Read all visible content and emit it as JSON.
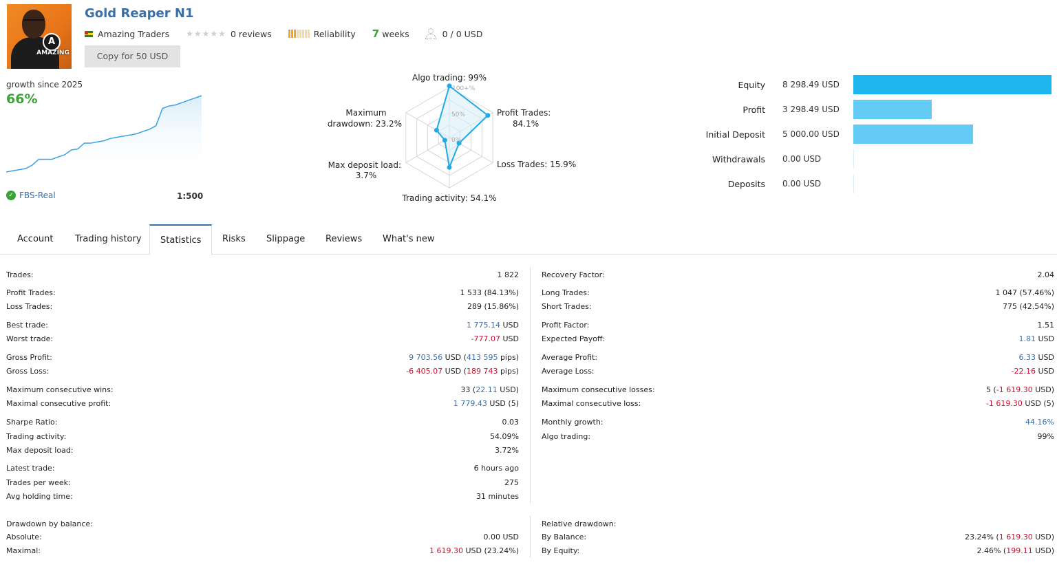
{
  "header": {
    "title": "Gold Reaper N1",
    "author": "Amazing Traders",
    "reviews": "0 reviews",
    "reliability": "Reliability",
    "reliability_level": 0.375,
    "weeks_num": "7",
    "weeks_label": "weeks",
    "subscribers": "0 / 0 USD",
    "copy_button": "Copy for 50 USD",
    "avatar_logo_letter": "A",
    "avatar_brand": "AMAZING"
  },
  "growth": {
    "label": "growth since 2025",
    "value": "66%",
    "broker": "FBS-Real",
    "leverage": "1:500",
    "curve": [
      0,
      1,
      2,
      3,
      6,
      11,
      11,
      11,
      13,
      15,
      19,
      20,
      25,
      25,
      26,
      27,
      29,
      30,
      31,
      32,
      33,
      35,
      37,
      40,
      55,
      57,
      58,
      60,
      62,
      64,
      66
    ]
  },
  "radar": {
    "ring_labels": [
      "100+%",
      "50%",
      "0%"
    ],
    "labels": {
      "algo": "Algo trading: 99%",
      "profit_1": "Profit Trades:",
      "profit_2": "84.1%",
      "loss": "Loss Trades: 15.9%",
      "activity": "Trading activity: 54.1%",
      "deposit_1": "Max deposit load:",
      "deposit_2": "3.7%",
      "drawdown_1": "Maximum",
      "drawdown_2": "drawdown: 23.2%"
    },
    "values": [
      99,
      84.1,
      15.9,
      54.1,
      3.7,
      23.2
    ]
  },
  "financials": {
    "max_value": 8298.49,
    "rows": [
      {
        "label": "Equity",
        "value": "8 298.49 USD",
        "amount": 8298.49
      },
      {
        "label": "Profit",
        "value": "3 298.49 USD",
        "amount": 3298.49
      },
      {
        "label": "Initial Deposit",
        "value": "5 000.00 USD",
        "amount": 5000.0
      },
      {
        "label": "Withdrawals",
        "value": "0.00 USD",
        "amount": 0
      },
      {
        "label": "Deposits",
        "value": "0.00 USD",
        "amount": 0
      }
    ]
  },
  "tabs": [
    "Account",
    "Trading history",
    "Statistics",
    "Risks",
    "Slippage",
    "Reviews",
    "What's new"
  ],
  "stats": {
    "left": [
      {
        "k": "Trades:",
        "v": [
          {
            "t": "1 822"
          }
        ]
      },
      {
        "k": "Profit Trades:",
        "v": [
          {
            "t": "1 533 (84.13%)"
          }
        ]
      },
      {
        "k": "Loss Trades:",
        "v": [
          {
            "t": "289 (15.86%)"
          }
        ]
      },
      {
        "k": "Best trade:",
        "v": [
          {
            "t": "1 775.14",
            "c": "blue"
          },
          {
            "t": " USD"
          }
        ]
      },
      {
        "k": "Worst trade:",
        "v": [
          {
            "t": "-777.07",
            "c": "red"
          },
          {
            "t": " USD"
          }
        ]
      },
      {
        "k": "Gross Profit:",
        "v": [
          {
            "t": "9 703.56",
            "c": "blue"
          },
          {
            "t": " USD ("
          },
          {
            "t": "413 595",
            "c": "blue"
          },
          {
            "t": " pips)"
          }
        ]
      },
      {
        "k": "Gross Loss:",
        "v": [
          {
            "t": "-6 405.07",
            "c": "red"
          },
          {
            "t": " USD ("
          },
          {
            "t": "189 743",
            "c": "red"
          },
          {
            "t": " pips)"
          }
        ]
      },
      {
        "k": "Maximum consecutive wins:",
        "v": [
          {
            "t": "33 ("
          },
          {
            "t": "22.11",
            "c": "blue"
          },
          {
            "t": " USD)"
          }
        ]
      },
      {
        "k": "Maximal consecutive profit:",
        "v": [
          {
            "t": "1 779.43",
            "c": "blue"
          },
          {
            "t": " USD (5)"
          }
        ]
      },
      {
        "k": "Sharpe Ratio:",
        "v": [
          {
            "t": "0.03"
          }
        ]
      },
      {
        "k": "Trading activity:",
        "v": [
          {
            "t": "54.09%"
          }
        ]
      },
      {
        "k": "Max deposit load:",
        "v": [
          {
            "t": "3.72%"
          }
        ]
      },
      {
        "k": "Latest trade:",
        "v": [
          {
            "t": "6 hours ago"
          }
        ]
      },
      {
        "k": "Trades per week:",
        "v": [
          {
            "t": "275"
          }
        ]
      },
      {
        "k": "Avg holding time:",
        "v": [
          {
            "t": "31 minutes"
          }
        ]
      },
      {
        "k": "Drawdown by balance:",
        "v": []
      },
      {
        "k": "Absolute:",
        "v": [
          {
            "t": "0.00 USD"
          }
        ]
      },
      {
        "k": "Maximal:",
        "v": [
          {
            "t": "1 619.30",
            "c": "red"
          },
          {
            "t": " USD (23.24%)"
          }
        ]
      }
    ],
    "right": [
      {
        "k": "Recovery Factor:",
        "v": [
          {
            "t": "2.04"
          }
        ]
      },
      {
        "k": "Long Trades:",
        "v": [
          {
            "t": "1 047 (57.46%)"
          }
        ]
      },
      {
        "k": "Short Trades:",
        "v": [
          {
            "t": "775 (42.54%)"
          }
        ]
      },
      {
        "k": "Profit Factor:",
        "v": [
          {
            "t": "1.51"
          }
        ]
      },
      {
        "k": "Expected Payoff:",
        "v": [
          {
            "t": "1.81",
            "c": "blue"
          },
          {
            "t": " USD"
          }
        ]
      },
      {
        "k": "Average Profit:",
        "v": [
          {
            "t": "6.33",
            "c": "blue"
          },
          {
            "t": " USD"
          }
        ]
      },
      {
        "k": "Average Loss:",
        "v": [
          {
            "t": "-22.16",
            "c": "red"
          },
          {
            "t": " USD"
          }
        ]
      },
      {
        "k": "Maximum consecutive losses:",
        "v": [
          {
            "t": "5 ("
          },
          {
            "t": "-1 619.30",
            "c": "red"
          },
          {
            "t": " USD)"
          }
        ]
      },
      {
        "k": "Maximal consecutive loss:",
        "v": [
          {
            "t": "-1 619.30",
            "c": "red"
          },
          {
            "t": " USD (5)"
          }
        ]
      },
      {
        "k": "Monthly growth:",
        "v": [
          {
            "t": "44.16%",
            "c": "blue"
          }
        ]
      },
      {
        "k": "Algo trading:",
        "v": [
          {
            "t": "99%"
          }
        ]
      },
      {
        "k": "Relative drawdown:",
        "v": []
      },
      {
        "k": "By Balance:",
        "v": [
          {
            "t": "23.24% ("
          },
          {
            "t": "1 619.30",
            "c": "red"
          },
          {
            "t": " USD)"
          }
        ]
      },
      {
        "k": "By Equity:",
        "v": [
          {
            "t": "2.46% ("
          },
          {
            "t": "199.11",
            "c": "red"
          },
          {
            "t": " USD)"
          }
        ]
      }
    ]
  },
  "colors": {
    "accent": "#3a6ea5",
    "positive": "#3aa335",
    "negative": "#c8102e",
    "bar": "#63cbf3",
    "bar_strong": "#1eb5ee"
  }
}
